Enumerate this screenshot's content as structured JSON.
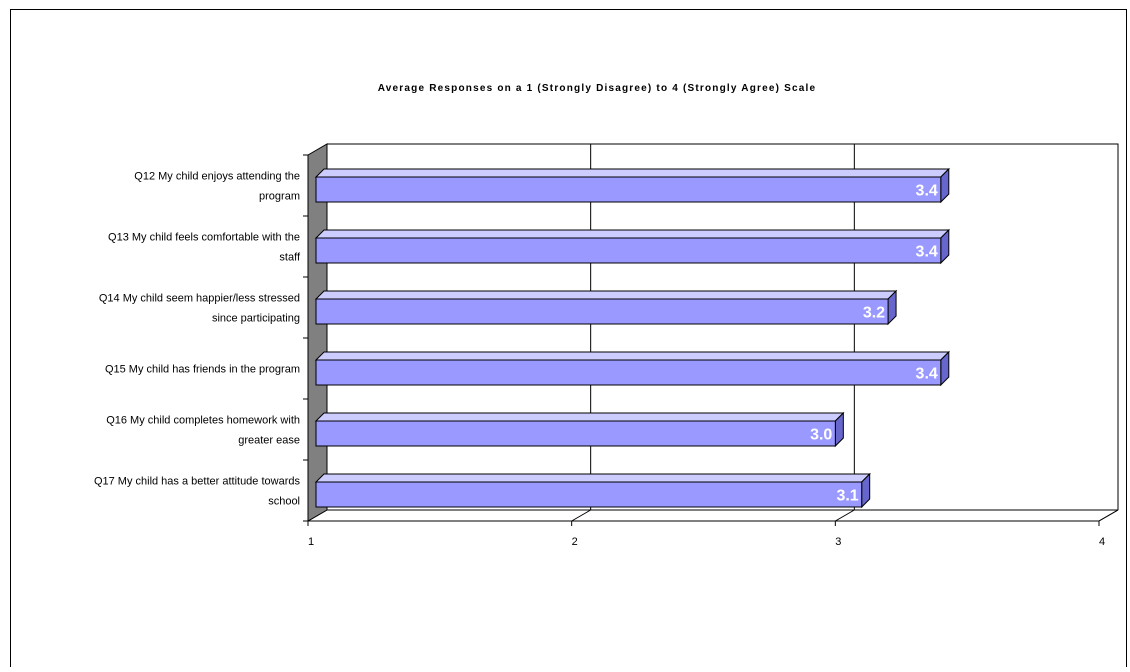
{
  "chart_data": {
    "type": "bar",
    "orientation": "horizontal",
    "title": "Average Responses on a 1 (Strongly Disagree) to 4 (Strongly Agree) Scale",
    "categories": [
      [
        "Q12 My child enjoys attending the",
        "program"
      ],
      [
        "Q13 My child feels comfortable with the",
        "staff"
      ],
      [
        "Q14 My child seem happier/less stressed",
        "since participating"
      ],
      [
        "Q15 My child has friends in the program"
      ],
      [
        "Q16 My child completes homework with",
        "greater ease"
      ],
      [
        "Q17 My child has a better attitude towards",
        "school"
      ]
    ],
    "series": [
      {
        "values": [
          3.4,
          3.4,
          3.2,
          3.4,
          3.0,
          3.1
        ],
        "data_labels": [
          "3.4",
          "3.4",
          "3.2",
          "3.4",
          "3.0",
          "3.1"
        ]
      }
    ],
    "xlim": [
      1,
      4
    ],
    "x_ticks": [
      "1",
      "2",
      "3",
      "4"
    ],
    "grid": "vertical",
    "style": "3d-bar",
    "colors": {
      "bar_front": "#9999ff",
      "bar_top": "#ccccff",
      "bar_side": "#6666cc",
      "bar_outline": "#000000",
      "wall": "#808080",
      "data_label": "#ffffff",
      "text": "#000000"
    }
  }
}
